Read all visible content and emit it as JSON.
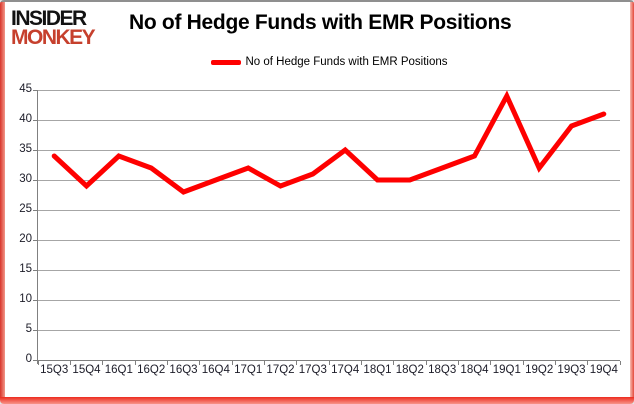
{
  "brand": {
    "line1": "INSIDER",
    "line2": "MONKEY",
    "accent_color": "#c6402d"
  },
  "header": {
    "title": "No of Hedge Funds with EMR Positions"
  },
  "legend": {
    "label": "No of Hedge Funds with EMR Positions",
    "swatch_color": "#fe0000"
  },
  "colors": {
    "line": "#fe0000",
    "gridline": "#a6a6a6",
    "axis": "#808080",
    "frame_red": "#ed2b1e",
    "frame_gray": "#8f8f8f",
    "text": "#000000"
  },
  "chart_data": {
    "type": "line",
    "title": "No of Hedge Funds with EMR Positions",
    "categories": [
      "15Q3",
      "15Q4",
      "16Q1",
      "16Q2",
      "16Q3",
      "16Q4",
      "17Q1",
      "17Q2",
      "17Q3",
      "17Q4",
      "18Q1",
      "18Q2",
      "18Q3",
      "18Q4",
      "19Q1",
      "19Q2",
      "19Q3",
      "19Q4"
    ],
    "series": [
      {
        "name": "No of Hedge Funds with EMR Positions",
        "color": "#fe0000",
        "values": [
          34,
          29,
          34,
          32,
          28,
          30,
          32,
          29,
          31,
          35,
          30,
          30,
          32,
          34,
          44,
          32,
          39,
          41
        ]
      }
    ],
    "xlabel": "",
    "ylabel": "",
    "ylim": [
      0,
      45
    ],
    "ytick_step": 5,
    "grid": "horizontal",
    "legend_position": "top-center"
  }
}
